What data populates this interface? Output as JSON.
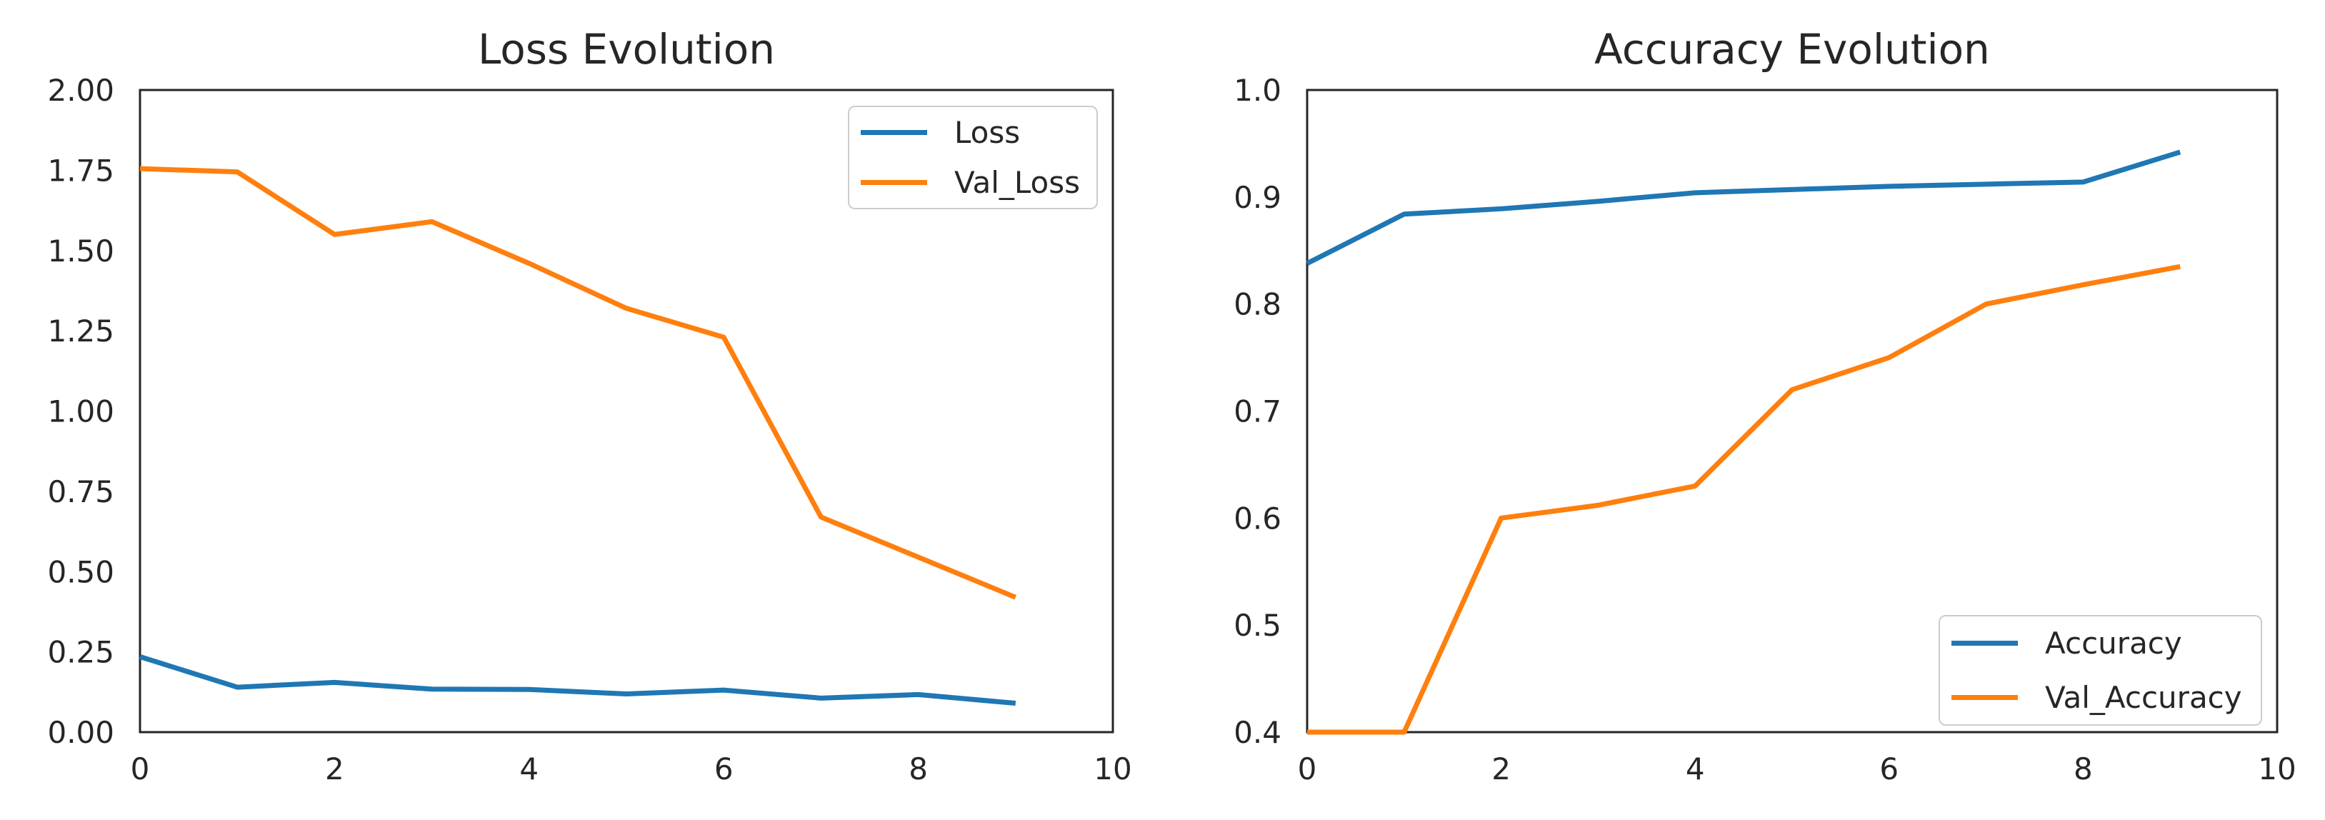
{
  "style": {
    "axis_color": "#262626",
    "text_color": "#262626",
    "legend_border_color": "#cccccc",
    "background_color": "#ffffff",
    "accent_blue": "#1f77b4",
    "accent_orange": "#ff7f0e"
  },
  "chart_data": [
    {
      "type": "line",
      "title": "Loss Evolution",
      "xlabel": "",
      "ylabel": "",
      "xlim": [
        0,
        10
      ],
      "ylim": [
        0,
        2
      ],
      "grid": false,
      "legend_position": "upper right",
      "xticks": {
        "values": [
          0,
          2,
          4,
          6,
          8,
          10
        ],
        "labels": [
          "0",
          "2",
          "4",
          "6",
          "8",
          "10"
        ]
      },
      "yticks": {
        "values": [
          0,
          0.25,
          0.5,
          0.75,
          1.0,
          1.25,
          1.5,
          1.75,
          2.0
        ],
        "labels": [
          "0.00",
          "0.25",
          "0.50",
          "0.75",
          "1.00",
          "1.25",
          "1.50",
          "1.75",
          "2.00"
        ]
      },
      "x": [
        0,
        1,
        2,
        3,
        4,
        5,
        6,
        7,
        8,
        9
      ],
      "series": [
        {
          "name": "Loss",
          "color": "#1f77b4",
          "values": [
            0.235,
            0.14,
            0.155,
            0.134,
            0.133,
            0.119,
            0.131,
            0.106,
            0.117,
            0.09
          ]
        },
        {
          "name": "Val_Loss",
          "color": "#ff7f0e",
          "values": [
            1.755,
            1.745,
            1.55,
            1.59,
            1.46,
            1.32,
            1.23,
            0.67,
            0.545,
            0.42
          ]
        }
      ]
    },
    {
      "type": "line",
      "title": "Accuracy Evolution",
      "xlabel": "",
      "ylabel": "",
      "xlim": [
        0,
        10
      ],
      "ylim": [
        0.4,
        1.0
      ],
      "grid": false,
      "legend_position": "lower right",
      "xticks": {
        "values": [
          0,
          2,
          4,
          6,
          8,
          10
        ],
        "labels": [
          "0",
          "2",
          "4",
          "6",
          "8",
          "10"
        ]
      },
      "yticks": {
        "values": [
          0.4,
          0.5,
          0.6,
          0.7,
          0.8,
          0.9,
          1.0
        ],
        "labels": [
          "0.4",
          "0.5",
          "0.6",
          "0.7",
          "0.8",
          "0.9",
          "1.0"
        ]
      },
      "x": [
        0,
        1,
        2,
        3,
        4,
        5,
        6,
        7,
        8,
        9
      ],
      "series": [
        {
          "name": "Accuracy",
          "color": "#1f77b4",
          "values": [
            0.838,
            0.884,
            0.889,
            0.896,
            0.904,
            0.907,
            0.91,
            0.912,
            0.914,
            0.942
          ]
        },
        {
          "name": "Val_Accuracy",
          "color": "#ff7f0e",
          "values": [
            0.4,
            0.4,
            0.6,
            0.612,
            0.63,
            0.72,
            0.75,
            0.8,
            0.818,
            0.835
          ]
        }
      ]
    }
  ]
}
